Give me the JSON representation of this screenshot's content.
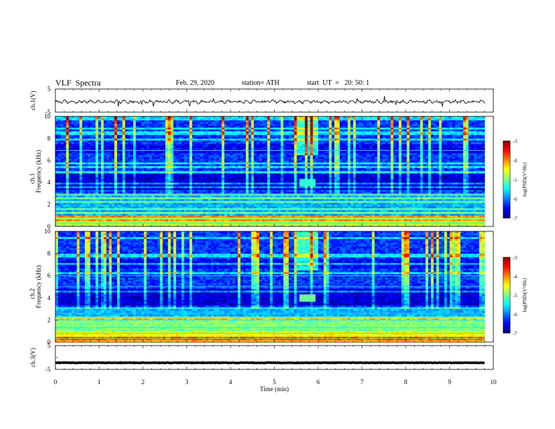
{
  "header": {
    "title": "VLF  Spectra",
    "date": "Feb. 29, 2020",
    "station": "station= ATH",
    "start_ut": "start  UT  =   20: 50: 1"
  },
  "colorbar_label": "log(PSD)(V²/Hz)",
  "colorbar_ticks": [
    "-3",
    "-4",
    "-5",
    "-6",
    "-7"
  ],
  "chart_data": [
    {
      "type": "line",
      "ylabel": "ch.1(V)",
      "ylim": [
        -5,
        5
      ],
      "yticks": [
        "5",
        "-5"
      ],
      "xlim": [
        0,
        10
      ],
      "series": [
        {
          "values_note": "noisy trace around -0.5 V over 0–9.8 min",
          "mean": -0.5
        }
      ]
    },
    {
      "type": "heatmap",
      "ylabel_top": "ch.1",
      "ylabel": "Frequency (kHz)",
      "ylim": [
        0,
        10
      ],
      "yticks": [
        "0",
        "2",
        "4",
        "6",
        "8",
        "10"
      ],
      "xlim": [
        0,
        10
      ],
      "data_end_min": 9.8,
      "color_range": [
        -7,
        -3
      ],
      "color_label": "log(PSD)(V²/Hz)",
      "burst_time_min": [
        5.6,
        5.95
      ],
      "burst_freq_khz": [
        3.7,
        4.3
      ]
    },
    {
      "type": "heatmap",
      "ylabel_top": "ch.2",
      "ylabel": "Frequency (kHz)",
      "ylim": [
        0,
        10
      ],
      "yticks": [
        "0",
        "2",
        "4",
        "6",
        "8",
        "10"
      ],
      "xlim": [
        0,
        10
      ],
      "data_end_min": 9.8,
      "color_range": [
        -7,
        -3
      ],
      "color_label": "log(PSD)(V²/Hz)",
      "burst_time_min": [
        5.6,
        5.95
      ],
      "burst_freq_khz": [
        3.6,
        4.3
      ]
    },
    {
      "type": "line",
      "ylabel": "ch.3(V)",
      "ylim": [
        -5,
        5
      ],
      "yticks": [
        "5",
        "-5"
      ],
      "xlim": [
        0,
        10
      ],
      "xlabel": "Time  (min)",
      "xticks": [
        "0",
        "1",
        "2",
        "3",
        "4",
        "5",
        "6",
        "7",
        "8",
        "9",
        "10"
      ],
      "series": [
        {
          "values_note": "flat thick trace at about -2.2 V over 0–9.8 min",
          "mean": -2.2
        }
      ]
    }
  ]
}
